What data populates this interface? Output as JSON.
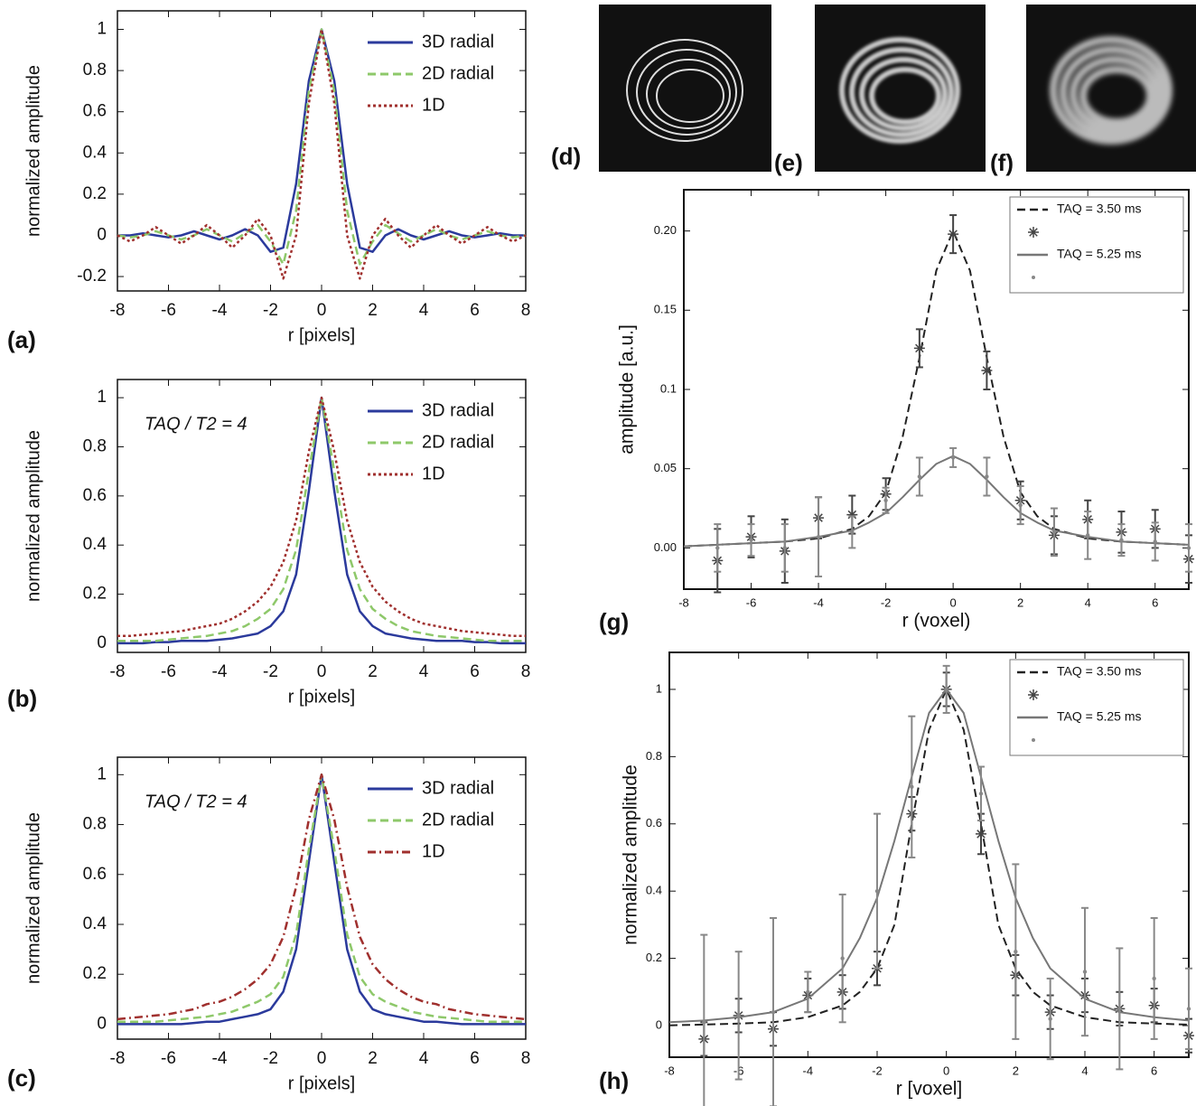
{
  "chart_data": [
    {
      "type": "line",
      "label": "(a)",
      "xlabel": "r [pixels]",
      "ylabel": "normalized amplitude",
      "xlim": [
        -8,
        8
      ],
      "ylim": [
        -0.27,
        1.09
      ],
      "xticks": [
        -8,
        -6,
        -4,
        -2,
        0,
        2,
        4,
        6,
        8
      ],
      "yticks": [
        -0.2,
        0,
        0.2,
        0.4,
        0.6,
        0.8,
        1
      ],
      "grid": false,
      "legend": "upper right",
      "x": [
        -8,
        -7.5,
        -7,
        -6.5,
        -6,
        -5.5,
        -5,
        -4.5,
        -4,
        -3.5,
        -3,
        -2.5,
        -2,
        -1.5,
        -1,
        -0.5,
        0,
        0.5,
        1,
        1.5,
        2,
        2.5,
        3,
        3.5,
        4,
        4.5,
        5,
        5.5,
        6,
        6.5,
        7,
        7.5,
        8
      ],
      "series": [
        {
          "name": "3D radial",
          "color": "#2b3a9c",
          "dash": "solid",
          "values": [
            0,
            0,
            0.01,
            0,
            -0.01,
            0,
            0.02,
            0,
            -0.02,
            0,
            0.03,
            0,
            -0.08,
            -0.06,
            0.25,
            0.75,
            1,
            0.75,
            0.25,
            -0.06,
            -0.08,
            0,
            0.03,
            0,
            -0.02,
            0,
            0.02,
            0,
            -0.01,
            0,
            0.01,
            0,
            0
          ]
        },
        {
          "name": "2D radial",
          "color": "#8ec86a",
          "dash": "dashed",
          "values": [
            0,
            -0.01,
            0,
            0.02,
            0,
            -0.02,
            0,
            0.03,
            0,
            -0.03,
            0.01,
            0.05,
            -0.03,
            -0.14,
            0.12,
            0.7,
            1,
            0.7,
            0.12,
            -0.14,
            -0.03,
            0.05,
            0.01,
            -0.03,
            0,
            0.03,
            0,
            -0.02,
            0,
            0.02,
            0,
            -0.01,
            0
          ]
        },
        {
          "name": "1D",
          "color": "#a0302e",
          "dash": "dotted",
          "values": [
            0,
            -0.03,
            0,
            0.04,
            0,
            -0.04,
            0,
            0.05,
            0,
            -0.06,
            0,
            0.08,
            0,
            -0.21,
            0,
            0.64,
            1,
            0.64,
            0,
            -0.21,
            0,
            0.08,
            0,
            -0.06,
            0,
            0.05,
            0,
            -0.04,
            0,
            0.04,
            0,
            -0.03,
            0
          ]
        }
      ]
    },
    {
      "type": "line",
      "label": "(b)",
      "xlabel": "r [pixels]",
      "ylabel": "normalized amplitude",
      "annotation": "TAQ / T2 = 4",
      "xlim": [
        -8,
        8
      ],
      "ylim": [
        -0.037,
        1.074
      ],
      "xticks": [
        -8,
        -6,
        -4,
        -2,
        0,
        2,
        4,
        6,
        8
      ],
      "yticks": [
        0,
        0.2,
        0.4,
        0.6,
        0.8,
        1
      ],
      "grid": false,
      "legend": "upper right",
      "x": [
        -8,
        -7.5,
        -7,
        -6.5,
        -6,
        -5.5,
        -5,
        -4.5,
        -4,
        -3.5,
        -3,
        -2.5,
        -2,
        -1.5,
        -1,
        -0.5,
        0,
        0.5,
        1,
        1.5,
        2,
        2.5,
        3,
        3.5,
        4,
        4.5,
        5,
        5.5,
        6,
        6.5,
        7,
        7.5,
        8
      ],
      "series": [
        {
          "name": "3D radial",
          "color": "#2b3a9c",
          "dash": "solid",
          "values": [
            0,
            0,
            0,
            0.005,
            0.005,
            0.01,
            0.01,
            0.01,
            0.015,
            0.02,
            0.03,
            0.04,
            0.07,
            0.13,
            0.28,
            0.62,
            1,
            0.62,
            0.28,
            0.13,
            0.07,
            0.04,
            0.03,
            0.02,
            0.015,
            0.01,
            0.01,
            0.01,
            0.005,
            0.005,
            0,
            0,
            0
          ]
        },
        {
          "name": "2D radial",
          "color": "#8ec86a",
          "dash": "dashed",
          "values": [
            0.01,
            0.01,
            0.01,
            0.01,
            0.015,
            0.02,
            0.025,
            0.03,
            0.04,
            0.05,
            0.07,
            0.1,
            0.14,
            0.22,
            0.38,
            0.7,
            1,
            0.7,
            0.38,
            0.22,
            0.14,
            0.1,
            0.07,
            0.05,
            0.04,
            0.03,
            0.025,
            0.02,
            0.015,
            0.01,
            0.01,
            0.01,
            0.01
          ]
        },
        {
          "name": "1D",
          "color": "#a0302e",
          "dash": "dotted",
          "values": [
            0.03,
            0.03,
            0.035,
            0.04,
            0.045,
            0.05,
            0.06,
            0.07,
            0.08,
            0.1,
            0.13,
            0.17,
            0.23,
            0.33,
            0.5,
            0.78,
            1,
            0.78,
            0.5,
            0.33,
            0.23,
            0.17,
            0.13,
            0.1,
            0.08,
            0.07,
            0.06,
            0.05,
            0.045,
            0.04,
            0.035,
            0.03,
            0.03
          ]
        }
      ]
    },
    {
      "type": "line",
      "label": "(c)",
      "xlabel": "r [pixels]",
      "ylabel": "normalized amplitude",
      "annotation": "TAQ / T2 = 4",
      "xlim": [
        -8,
        8
      ],
      "ylim": [
        -0.06,
        1.07
      ],
      "xticks": [
        -8,
        -6,
        -4,
        -2,
        0,
        2,
        4,
        6,
        8
      ],
      "yticks": [
        0,
        0.2,
        0.4,
        0.6,
        0.8,
        1
      ],
      "grid": false,
      "legend": "upper right",
      "x": [
        -8,
        -7.5,
        -7,
        -6.5,
        -6,
        -5.5,
        -5,
        -4.5,
        -4,
        -3.5,
        -3,
        -2.5,
        -2,
        -1.5,
        -1,
        -0.5,
        0,
        0.5,
        1,
        1.5,
        2,
        2.5,
        3,
        3.5,
        4,
        4.5,
        5,
        5.5,
        6,
        6.5,
        7,
        7.5,
        8
      ],
      "series": [
        {
          "name": "3D radial",
          "color": "#2b3a9c",
          "dash": "solid",
          "values": [
            0,
            0,
            0,
            0,
            0,
            0,
            0.005,
            0.01,
            0.01,
            0.02,
            0.03,
            0.04,
            0.06,
            0.13,
            0.3,
            0.65,
            1,
            0.65,
            0.3,
            0.13,
            0.06,
            0.04,
            0.03,
            0.02,
            0.01,
            0.01,
            0.005,
            0,
            0,
            0,
            0,
            0,
            0
          ]
        },
        {
          "name": "2D radial",
          "color": "#8ec86a",
          "dash": "dashed",
          "values": [
            0.01,
            0.01,
            0.01,
            0.01,
            0.015,
            0.02,
            0.025,
            0.03,
            0.04,
            0.05,
            0.07,
            0.09,
            0.12,
            0.19,
            0.36,
            0.7,
            1,
            0.7,
            0.36,
            0.19,
            0.12,
            0.09,
            0.07,
            0.05,
            0.04,
            0.03,
            0.025,
            0.02,
            0.015,
            0.01,
            0.01,
            0.01,
            0.01
          ]
        },
        {
          "name": "1D",
          "color": "#a0302e",
          "dash": "dashdot",
          "values": [
            0.02,
            0.025,
            0.03,
            0.035,
            0.04,
            0.05,
            0.06,
            0.08,
            0.09,
            0.11,
            0.14,
            0.18,
            0.24,
            0.35,
            0.55,
            0.82,
            1,
            0.82,
            0.55,
            0.35,
            0.24,
            0.18,
            0.14,
            0.11,
            0.09,
            0.08,
            0.06,
            0.05,
            0.04,
            0.035,
            0.03,
            0.025,
            0.02
          ]
        }
      ]
    },
    {
      "type": "line",
      "label": "(g)",
      "xlabel": "r (voxel)",
      "ylabel": "amplitude [a.u.]",
      "xlim": [
        -8,
        7
      ],
      "ylim": [
        -0.026,
        0.226
      ],
      "xticks": [
        -8,
        -6,
        -4,
        -2,
        0,
        2,
        4,
        6
      ],
      "yticks": [
        {
          "value": 0,
          "label": "0.00"
        },
        0.05,
        0.1,
        0.15,
        {
          "value": 0.2,
          "label": "0.20"
        }
      ],
      "grid": false,
      "legend": "upper right",
      "x": [
        -8,
        -7,
        -6,
        -5,
        -4,
        -3,
        -2.5,
        -2,
        -1.5,
        -1,
        -0.5,
        0,
        0.5,
        1,
        1.5,
        2,
        2.5,
        3,
        4,
        5,
        6,
        7
      ],
      "series": [
        {
          "name": "TAQ = 3.50 ms",
          "color": "#222222",
          "dash": "dashed",
          "values": [
            0.001,
            0.002,
            0.003,
            0.004,
            0.006,
            0.012,
            0.02,
            0.035,
            0.07,
            0.12,
            0.175,
            0.2,
            0.175,
            0.12,
            0.07,
            0.035,
            0.02,
            0.012,
            0.006,
            0.004,
            0.003,
            0.002
          ]
        },
        {
          "kind": "scatter",
          "marker": "asterisk",
          "color": "#444444",
          "x": [
            -7,
            -6,
            -5,
            -4,
            -3,
            -2,
            -1,
            0,
            1,
            2,
            3,
            4,
            5,
            6,
            7
          ],
          "values": [
            -0.008,
            0.007,
            -0.002,
            0.019,
            0.021,
            0.034,
            0.126,
            0.198,
            0.112,
            0.03,
            0.008,
            0.018,
            0.01,
            0.012,
            -0.007
          ],
          "errors": [
            0.02,
            0.013,
            0.02,
            0.013,
            0.012,
            0.01,
            0.012,
            0.012,
            0.012,
            0.012,
            0.012,
            0.012,
            0.013,
            0.012,
            0.015
          ]
        },
        {
          "name": "TAQ = 5.25 ms",
          "color": "#777777",
          "dash": "solid",
          "values": [
            0.001,
            0.002,
            0.003,
            0.004,
            0.007,
            0.011,
            0.016,
            0.022,
            0.032,
            0.043,
            0.053,
            0.058,
            0.053,
            0.043,
            0.032,
            0.022,
            0.016,
            0.011,
            0.007,
            0.004,
            0.003,
            0.002
          ]
        },
        {
          "kind": "scatter",
          "marker": "dot",
          "color": "#888888",
          "x": [
            -7,
            -6,
            -5,
            -4,
            -3,
            -2,
            -1,
            0,
            1,
            2,
            3,
            4,
            5,
            6,
            7
          ],
          "values": [
            0,
            0.005,
            0,
            0.007,
            0.01,
            0.03,
            0.045,
            0.057,
            0.045,
            0.027,
            0.01,
            0.008,
            0.005,
            0.004,
            0
          ],
          "errors": [
            0.015,
            0.01,
            0.015,
            0.025,
            0.01,
            0.008,
            0.012,
            0.006,
            0.012,
            0.012,
            0.015,
            0.015,
            0.01,
            0.012,
            0.015
          ]
        }
      ]
    },
    {
      "type": "line",
      "label": "(h)",
      "xlabel": "r [voxel]",
      "ylabel": "normalized amplitude",
      "xlim": [
        -8,
        7
      ],
      "ylim": [
        -0.094,
        1.11
      ],
      "xticks": [
        -8,
        -6,
        -4,
        -2,
        0,
        2,
        4,
        6
      ],
      "yticks": [
        0,
        0.2,
        0.4,
        0.6,
        0.8,
        1
      ],
      "grid": false,
      "legend": "upper right",
      "x": [
        -8,
        -7,
        -6,
        -5,
        -4,
        -3,
        -2.5,
        -2,
        -1.5,
        -1,
        -0.5,
        0,
        0.5,
        1,
        1.5,
        2,
        2.5,
        3,
        4,
        5,
        6,
        7
      ],
      "series": [
        {
          "name": "TAQ = 3.50 ms",
          "color": "#222222",
          "dash": "dashed",
          "values": [
            0.001,
            0.003,
            0.006,
            0.01,
            0.025,
            0.06,
            0.1,
            0.17,
            0.3,
            0.6,
            0.88,
            1,
            0.88,
            0.6,
            0.3,
            0.17,
            0.1,
            0.06,
            0.025,
            0.01,
            0.006,
            0.003
          ]
        },
        {
          "kind": "scatter",
          "marker": "asterisk",
          "color": "#444444",
          "x": [
            -7,
            -6,
            -5,
            -4,
            -3,
            -2,
            -1,
            0,
            1,
            2,
            3,
            4,
            5,
            6,
            7
          ],
          "values": [
            -0.04,
            0.03,
            -0.01,
            0.09,
            0.1,
            0.17,
            0.63,
            1,
            0.57,
            0.15,
            0.04,
            0.09,
            0.05,
            0.06,
            -0.03
          ],
          "errors": [
            0.05,
            0.05,
            0.05,
            0.05,
            0.05,
            0.05,
            0.05,
            0.05,
            0.06,
            0.06,
            0.05,
            0.05,
            0.05,
            0.05,
            0.05
          ]
        },
        {
          "name": "TAQ = 5.25 ms",
          "color": "#777777",
          "dash": "solid",
          "values": [
            0.01,
            0.015,
            0.025,
            0.04,
            0.08,
            0.17,
            0.26,
            0.38,
            0.55,
            0.74,
            0.93,
            1,
            0.93,
            0.74,
            0.55,
            0.38,
            0.26,
            0.17,
            0.08,
            0.04,
            0.025,
            0.015
          ]
        },
        {
          "kind": "scatter",
          "marker": "dot",
          "color": "#888888",
          "x": [
            -7,
            -6,
            -5,
            -4,
            -3,
            -2,
            -1,
            0,
            1,
            2,
            3,
            4,
            5,
            6,
            7
          ],
          "values": [
            0.01,
            0.03,
            0.04,
            0.1,
            0.2,
            0.4,
            0.71,
            1,
            0.69,
            0.22,
            0.02,
            0.16,
            0.05,
            0.14,
            0.05
          ],
          "errors": [
            0.26,
            0.19,
            0.28,
            0.06,
            0.19,
            0.23,
            0.21,
            0.07,
            0.08,
            0.26,
            0.12,
            0.19,
            0.18,
            0.18,
            0.12
          ]
        }
      ]
    }
  ],
  "images": [
    {
      "label": "(d)"
    },
    {
      "label": "(e)"
    },
    {
      "label": "(f)"
    }
  ]
}
